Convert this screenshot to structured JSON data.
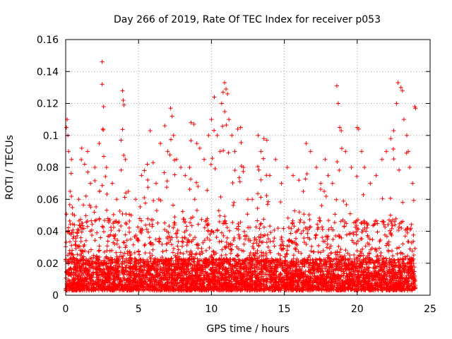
{
  "chart_data": {
    "type": "scatter",
    "title": "Day 266 of 2019, Rate Of TEC Index for receiver p053",
    "xlabel": "GPS time / hours",
    "ylabel": "ROTI / TECUs",
    "xlim": [
      0,
      25
    ],
    "ylim": [
      0,
      0.16
    ],
    "xticks": [
      0,
      5,
      10,
      15,
      20,
      25
    ],
    "xtick_labels": [
      "0",
      "5",
      "10",
      "15",
      "20",
      "25"
    ],
    "yticks": [
      0,
      0.02,
      0.04,
      0.06,
      0.08,
      0.1,
      0.12,
      0.14,
      0.16
    ],
    "ytick_labels": [
      "0",
      "0.02",
      "0.04",
      "0.06",
      "0.08",
      "0.1",
      "0.12",
      "0.14",
      "0.16"
    ],
    "grid": true,
    "marker": "plus",
    "marker_color": "#ff0000",
    "data_range_hours": [
      0,
      24
    ],
    "series": [
      {
        "name": "ROTI",
        "color": "#ff0000",
        "points": [
          [
            0.05,
            0.105
          ],
          [
            0.1,
            0.11
          ],
          [
            0.15,
            0.1
          ],
          [
            0.2,
            0.09
          ],
          [
            0.3,
            0.065
          ],
          [
            0.4,
            0.085
          ],
          [
            0.6,
            0.05
          ],
          [
            0.9,
            0.06
          ],
          [
            1.1,
            0.092
          ],
          [
            1.3,
            0.082
          ],
          [
            1.5,
            0.09
          ],
          [
            1.7,
            0.07
          ],
          [
            2.0,
            0.08
          ],
          [
            2.3,
            0.095
          ],
          [
            2.5,
            0.146
          ],
          [
            2.5,
            0.132
          ],
          [
            2.6,
            0.118
          ],
          [
            2.55,
            0.104
          ],
          [
            2.8,
            0.08
          ],
          [
            3.2,
            0.07
          ],
          [
            3.5,
            0.06
          ],
          [
            3.8,
            0.097
          ],
          [
            3.9,
            0.128
          ],
          [
            3.95,
            0.122
          ],
          [
            4.0,
            0.119
          ],
          [
            4.1,
            0.085
          ],
          [
            4.3,
            0.065
          ],
          [
            4.5,
            0.05
          ],
          [
            4.8,
            0.06
          ],
          [
            5.2,
            0.075
          ],
          [
            5.4,
            0.078
          ],
          [
            5.6,
            0.082
          ],
          [
            5.8,
            0.103
          ],
          [
            6.0,
            0.083
          ],
          [
            6.2,
            0.07
          ],
          [
            6.5,
            0.095
          ],
          [
            6.8,
            0.106
          ],
          [
            7.0,
            0.09
          ],
          [
            7.2,
            0.117
          ],
          [
            7.3,
            0.112
          ],
          [
            7.4,
            0.1
          ],
          [
            7.6,
            0.085
          ],
          [
            7.9,
            0.08
          ],
          [
            8.2,
            0.075
          ],
          [
            8.5,
            0.08
          ],
          [
            8.6,
            0.108
          ],
          [
            8.8,
            0.107
          ],
          [
            9.0,
            0.095
          ],
          [
            9.2,
            0.092
          ],
          [
            9.5,
            0.085
          ],
          [
            9.8,
            0.1
          ],
          [
            10.0,
            0.11
          ],
          [
            10.2,
            0.124
          ],
          [
            10.4,
            0.1
          ],
          [
            10.6,
            0.09
          ],
          [
            10.7,
            0.12
          ],
          [
            10.8,
            0.127
          ],
          [
            10.9,
            0.133
          ],
          [
            11.0,
            0.129
          ],
          [
            11.1,
            0.126
          ],
          [
            11.2,
            0.11
          ],
          [
            11.4,
            0.1
          ],
          [
            11.6,
            0.09
          ],
          [
            11.8,
            0.104
          ],
          [
            12.0,
            0.105
          ],
          [
            12.2,
            0.08
          ],
          [
            12.5,
            0.06
          ],
          [
            12.8,
            0.06
          ],
          [
            13.2,
            0.1
          ],
          [
            13.4,
            0.09
          ],
          [
            13.6,
            0.098
          ],
          [
            13.8,
            0.097
          ],
          [
            14.0,
            0.075
          ],
          [
            14.4,
            0.085
          ],
          [
            14.8,
            0.07
          ],
          [
            15.2,
            0.08
          ],
          [
            15.6,
            0.075
          ],
          [
            16.0,
            0.072
          ],
          [
            16.3,
            0.065
          ],
          [
            16.5,
            0.095
          ],
          [
            16.8,
            0.09
          ],
          [
            17.2,
            0.08
          ],
          [
            17.5,
            0.07
          ],
          [
            17.8,
            0.085
          ],
          [
            18.0,
            0.075
          ],
          [
            18.3,
            0.07
          ],
          [
            18.6,
            0.131
          ],
          [
            18.7,
            0.12
          ],
          [
            18.8,
            0.105
          ],
          [
            18.9,
            0.103
          ],
          [
            19.2,
            0.09
          ],
          [
            19.6,
            0.08
          ],
          [
            20.0,
            0.105
          ],
          [
            20.1,
            0.104
          ],
          [
            20.3,
            0.09
          ],
          [
            20.5,
            0.08
          ],
          [
            20.9,
            0.07
          ],
          [
            21.3,
            0.075
          ],
          [
            21.7,
            0.085
          ],
          [
            22.0,
            0.09
          ],
          [
            22.3,
            0.098
          ],
          [
            22.5,
            0.103
          ],
          [
            22.7,
            0.12
          ],
          [
            22.8,
            0.133
          ],
          [
            23.0,
            0.13
          ],
          [
            23.1,
            0.128
          ],
          [
            23.2,
            0.11
          ],
          [
            23.4,
            0.1
          ],
          [
            23.5,
            0.09
          ],
          [
            23.6,
            0.08
          ],
          [
            23.8,
            0.07
          ],
          [
            23.95,
            0.118
          ],
          [
            24.0,
            0.117
          ]
        ]
      }
    ]
  }
}
